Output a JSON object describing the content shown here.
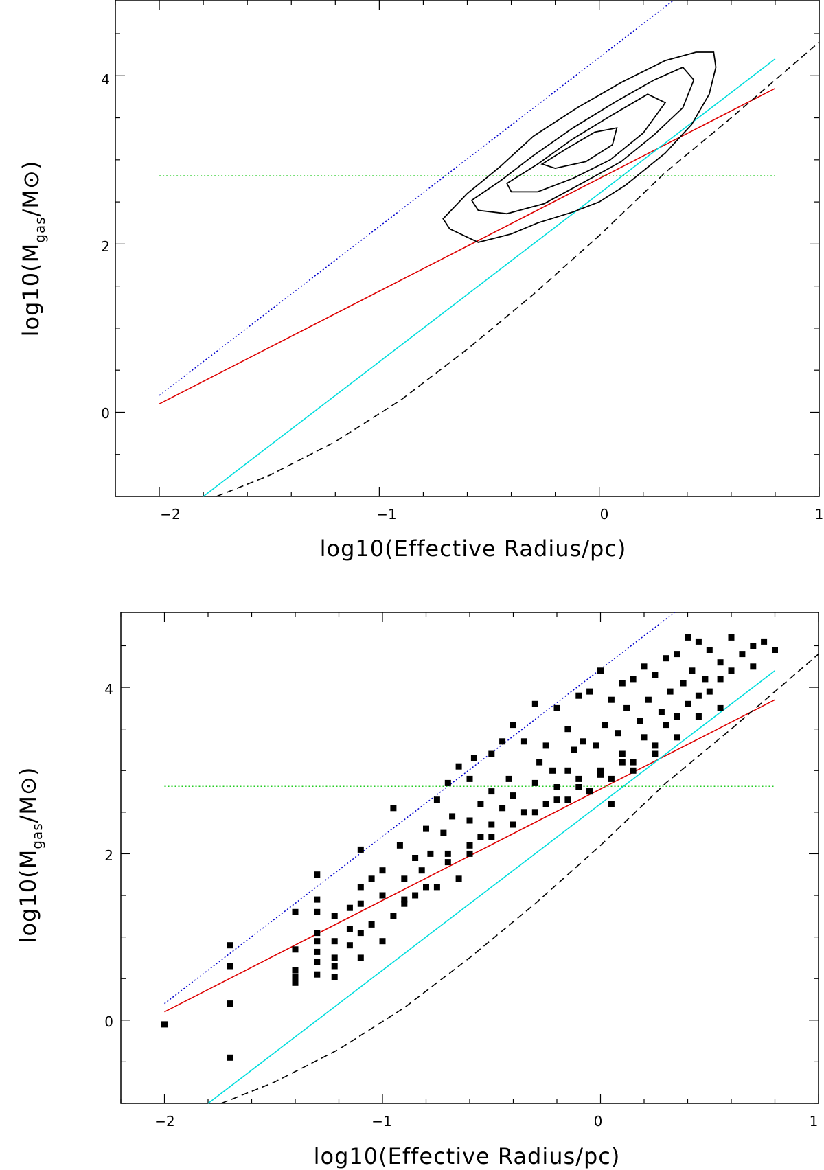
{
  "chart_data": [
    {
      "type": "line",
      "panel": "top",
      "xlabel": "log10(Effective Radius/pc)",
      "ylabel": {
        "prefix": "log10(M",
        "sub1": "gas",
        "mid": "/M",
        "sun": "⊙",
        "suffix": ")"
      },
      "xlim": [
        -2.2,
        1.0
      ],
      "ylim": [
        -1.0,
        4.9
      ],
      "xticks": [
        -2,
        -1,
        0,
        1
      ],
      "xtick_labels": [
        "−2",
        "−1",
        "0",
        "1"
      ],
      "yticks": [
        0,
        2,
        4
      ],
      "ytick_labels": [
        "0",
        "2",
        "4"
      ],
      "x_minor_step": 0.2,
      "y_minor_step": 0.5,
      "grid": false,
      "series": [
        {
          "style": "dotted",
          "color": "#0000cc",
          "x": [
            -2.0,
            0.34
          ],
          "y": [
            0.2,
            4.9
          ]
        },
        {
          "style": "solid",
          "color": "#dd0000",
          "x": [
            -2.0,
            0.8
          ],
          "y": [
            0.1,
            3.85
          ]
        },
        {
          "style": "solid",
          "color": "#00dddd",
          "x": [
            -1.8,
            0.8
          ],
          "y": [
            -1.0,
            4.2
          ]
        },
        {
          "style": "dashed",
          "color": "#000000",
          "x": [
            -1.74,
            -1.5,
            -1.2,
            -0.9,
            -0.6,
            -0.3,
            0.0,
            0.3,
            0.6,
            1.0
          ],
          "y": [
            -1.0,
            -0.75,
            -0.35,
            0.15,
            0.75,
            1.4,
            2.1,
            2.85,
            3.5,
            4.4
          ]
        },
        {
          "style": "dotted",
          "color": "#22cc22",
          "x": [
            -2.0,
            0.8
          ],
          "y": [
            2.81,
            2.81
          ]
        }
      ],
      "contours": [
        {
          "x": [
            -0.71,
            -0.6,
            -0.45,
            -0.3,
            -0.1,
            0.1,
            0.3,
            0.44,
            0.52,
            0.53,
            0.5,
            0.42,
            0.3,
            0.12,
            0.0,
            -0.12,
            -0.28,
            -0.4,
            -0.55,
            -0.68,
            -0.71
          ],
          "y": [
            2.3,
            2.6,
            2.92,
            3.28,
            3.62,
            3.92,
            4.18,
            4.28,
            4.28,
            4.1,
            3.78,
            3.42,
            3.08,
            2.7,
            2.5,
            2.38,
            2.25,
            2.12,
            2.02,
            2.18,
            2.3
          ]
        },
        {
          "x": [
            -0.58,
            -0.45,
            -0.3,
            -0.12,
            0.08,
            0.25,
            0.38,
            0.43,
            0.38,
            0.25,
            0.1,
            -0.08,
            -0.25,
            -0.42,
            -0.55,
            -0.58
          ],
          "y": [
            2.52,
            2.75,
            3.05,
            3.38,
            3.7,
            3.95,
            4.1,
            3.95,
            3.62,
            3.3,
            2.98,
            2.72,
            2.48,
            2.36,
            2.4,
            2.52
          ]
        },
        {
          "x": [
            -0.42,
            -0.28,
            -0.12,
            0.05,
            0.22,
            0.3,
            0.2,
            0.05,
            -0.12,
            -0.28,
            -0.4,
            -0.42
          ],
          "y": [
            2.72,
            2.95,
            3.25,
            3.52,
            3.78,
            3.68,
            3.32,
            3.0,
            2.78,
            2.62,
            2.62,
            2.72
          ]
        },
        {
          "x": [
            -0.26,
            -0.15,
            -0.02,
            0.08,
            0.06,
            -0.06,
            -0.2,
            -0.26
          ],
          "y": [
            2.95,
            3.13,
            3.33,
            3.38,
            3.18,
            2.98,
            2.9,
            2.95
          ]
        }
      ]
    },
    {
      "type": "scatter",
      "panel": "bottom",
      "xlabel": "log10(Effective Radius/pc)",
      "ylabel": {
        "prefix": "log10(M",
        "sub1": "gas",
        "mid": "/M",
        "sun": "⊙",
        "suffix": ")"
      },
      "xlim": [
        -2.2,
        1.0
      ],
      "ylim": [
        -1.0,
        4.9
      ],
      "xticks": [
        -2,
        -1,
        0,
        1
      ],
      "xtick_labels": [
        "−2",
        "−1",
        "0",
        "1"
      ],
      "yticks": [
        0,
        2,
        4
      ],
      "ytick_labels": [
        "0",
        "2",
        "4"
      ],
      "x_minor_step": 0.2,
      "y_minor_step": 0.5,
      "grid": false,
      "series": [
        {
          "style": "dotted",
          "color": "#0000cc",
          "x": [
            -2.0,
            0.34
          ],
          "y": [
            0.2,
            4.9
          ]
        },
        {
          "style": "solid",
          "color": "#dd0000",
          "x": [
            -2.0,
            0.8
          ],
          "y": [
            0.1,
            3.85
          ]
        },
        {
          "style": "solid",
          "color": "#00dddd",
          "x": [
            -1.8,
            0.8
          ],
          "y": [
            -1.0,
            4.2
          ]
        },
        {
          "style": "dashed",
          "color": "#000000",
          "x": [
            -1.74,
            -1.5,
            -1.2,
            -0.9,
            -0.6,
            -0.3,
            0.0,
            0.3,
            0.6,
            1.0
          ],
          "y": [
            -1.0,
            -0.75,
            -0.35,
            0.15,
            0.75,
            1.4,
            2.1,
            2.85,
            3.5,
            4.4
          ]
        },
        {
          "style": "dotted",
          "color": "#22cc22",
          "x": [
            -2.0,
            0.8
          ],
          "y": [
            2.81,
            2.81
          ]
        }
      ],
      "points": {
        "marker": "square",
        "color": "#000000",
        "x": [
          -2.0,
          -1.7,
          -1.7,
          -1.7,
          -1.7,
          -1.4,
          -1.4,
          -1.4,
          -1.4,
          -1.4,
          -1.3,
          -1.3,
          -1.3,
          -1.3,
          -1.3,
          -1.3,
          -1.3,
          -1.3,
          -1.22,
          -1.22,
          -1.22,
          -1.22,
          -1.22,
          -1.15,
          -1.15,
          -1.15,
          -1.1,
          -1.1,
          -1.1,
          -1.1,
          -1.1,
          -1.05,
          -1.05,
          -1.0,
          -1.0,
          -1.0,
          -0.95,
          -0.95,
          -0.92,
          -0.9,
          -0.9,
          -0.85,
          -0.85,
          -0.82,
          -0.8,
          -0.78,
          -0.75,
          -0.75,
          -0.72,
          -0.7,
          -0.7,
          -0.68,
          -0.65,
          -0.65,
          -0.6,
          -0.6,
          -0.6,
          -0.58,
          -0.55,
          -0.55,
          -0.5,
          -0.5,
          -0.5,
          -0.45,
          -0.45,
          -0.42,
          -0.4,
          -0.4,
          -0.35,
          -0.35,
          -0.3,
          -0.3,
          -0.28,
          -0.25,
          -0.25,
          -0.22,
          -0.2,
          -0.2,
          -0.15,
          -0.15,
          -0.12,
          -0.1,
          -0.1,
          -0.08,
          -0.05,
          -0.05,
          -0.02,
          0.0,
          0.0,
          0.02,
          0.05,
          0.05,
          0.08,
          0.1,
          0.1,
          0.12,
          0.15,
          0.15,
          0.18,
          0.2,
          0.2,
          0.22,
          0.25,
          0.25,
          0.28,
          0.3,
          0.3,
          0.32,
          0.35,
          0.35,
          0.38,
          0.4,
          0.4,
          0.42,
          0.45,
          0.45,
          0.48,
          0.5,
          0.5,
          0.55,
          0.55,
          0.6,
          0.6,
          0.65,
          0.7,
          0.7,
          0.75,
          0.8,
          -0.3,
          -0.2,
          -0.1,
          0.0,
          0.1,
          0.05,
          -0.05,
          0.15,
          -0.15,
          0.25,
          0.35,
          -0.4,
          -0.5,
          -0.6,
          -0.7,
          -0.8,
          -0.9,
          0.45,
          0.55
        ],
        "y": [
          -0.05,
          0.9,
          0.65,
          0.2,
          -0.45,
          0.85,
          0.6,
          0.52,
          0.45,
          1.3,
          1.75,
          1.45,
          1.3,
          1.05,
          0.95,
          0.82,
          0.7,
          0.55,
          1.25,
          0.95,
          0.75,
          0.65,
          0.52,
          1.35,
          1.1,
          0.9,
          2.05,
          1.6,
          1.4,
          1.05,
          0.75,
          1.7,
          1.15,
          1.8,
          1.5,
          0.95,
          1.25,
          2.55,
          2.1,
          1.7,
          1.4,
          1.95,
          1.5,
          1.8,
          2.3,
          2.0,
          2.65,
          1.6,
          2.25,
          2.85,
          2.0,
          2.45,
          3.05,
          1.7,
          2.9,
          2.4,
          2.0,
          3.15,
          2.6,
          2.2,
          3.2,
          2.75,
          2.35,
          3.35,
          2.55,
          2.9,
          3.55,
          2.7,
          3.35,
          2.5,
          3.8,
          2.85,
          3.1,
          3.3,
          2.6,
          3.0,
          3.75,
          2.8,
          3.5,
          2.65,
          3.25,
          3.9,
          2.9,
          3.35,
          3.95,
          2.75,
          3.3,
          4.2,
          3.0,
          3.55,
          3.85,
          2.9,
          3.45,
          4.05,
          3.2,
          3.75,
          4.1,
          3.1,
          3.6,
          4.25,
          3.4,
          3.85,
          4.15,
          3.3,
          3.7,
          4.35,
          3.55,
          3.95,
          4.4,
          3.65,
          4.05,
          4.6,
          3.8,
          4.2,
          4.55,
          3.9,
          4.1,
          4.45,
          3.95,
          4.3,
          4.1,
          4.6,
          4.2,
          4.4,
          4.5,
          4.25,
          4.55,
          4.45,
          2.5,
          2.65,
          2.8,
          2.95,
          3.1,
          2.6,
          2.75,
          3.0,
          3.0,
          3.2,
          3.4,
          2.35,
          2.2,
          2.1,
          1.9,
          1.6,
          1.45,
          3.65,
          3.75
        ]
      }
    }
  ]
}
